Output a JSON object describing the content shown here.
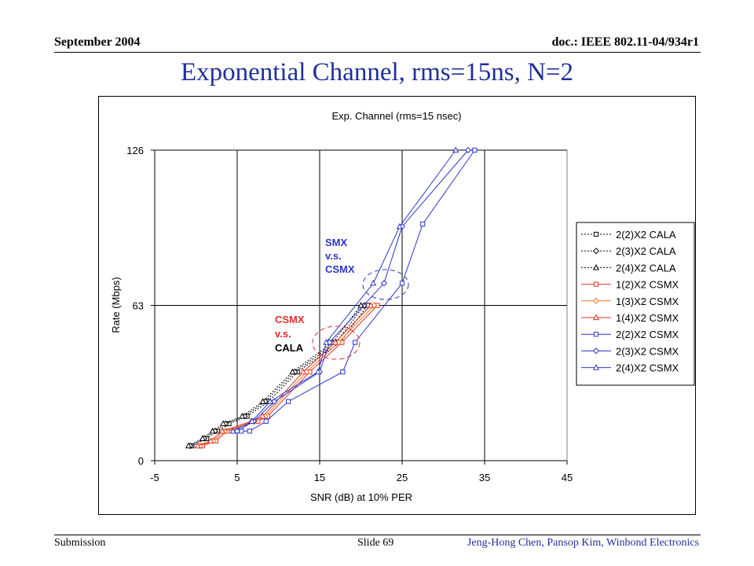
{
  "header": {
    "date": "September 2004",
    "doc": "doc.: IEEE 802.11-04/934r1"
  },
  "slide_title": "Exponential Channel, rms=15ns, N=2",
  "footer": {
    "left": "Submission",
    "center": "Slide 69",
    "right": "Jeng-Hong Chen, Pansop Kim, Winbond Electronics"
  },
  "colors": {
    "cala": "#000000",
    "csmx_1": "#e0302a",
    "csmx_1_3": "#f07a1e",
    "csmx_2": "#2b36c8",
    "annotation_red": "#e0302a",
    "annotation_blue": "#2b36c8"
  },
  "chart_data": {
    "type": "line",
    "title": "Exp. Channel (rms=15 nsec)",
    "xlabel": "SNR (dB) at 10% PER",
    "ylabel": "Rate (Mbps)",
    "xlim": [
      -5,
      45
    ],
    "ylim": [
      0,
      126
    ],
    "xticks": [
      "-5",
      "5",
      "15",
      "25",
      "35",
      "45"
    ],
    "yticks": [
      "0",
      "63",
      "126"
    ],
    "grid": "vertical and horizontal at major ticks",
    "legend_position": "right",
    "annotations": [
      {
        "lines": [
          "SMX",
          "v.s.",
          "CSMX"
        ],
        "color": "blue"
      },
      {
        "lines": [
          "CSMX",
          "v.s.",
          "CALA"
        ],
        "colors": [
          "red",
          "red",
          "black"
        ]
      }
    ],
    "series": [
      {
        "name": "2(2)X2 CALA",
        "style": "dotted",
        "marker": "square",
        "color": "#000000",
        "x": [
          -0.5,
          1.3,
          2.6,
          4.0,
          6.2,
          8.8,
          12.3,
          17.5,
          20.8
        ],
        "y": [
          6,
          9,
          12,
          15,
          18,
          24,
          36,
          48,
          63
        ]
      },
      {
        "name": "2(3)X2 CALA",
        "style": "dotted",
        "marker": "diamond",
        "color": "#000000",
        "x": [
          -0.7,
          1.0,
          2.3,
          3.6,
          5.9,
          8.4,
          12.0,
          17.0,
          20.4
        ],
        "y": [
          6,
          9,
          12,
          15,
          18,
          24,
          36,
          48,
          63
        ]
      },
      {
        "name": "2(4)X2 CALA",
        "style": "dotted",
        "marker": "triangle",
        "color": "#000000",
        "x": [
          -0.9,
          0.8,
          2.0,
          3.3,
          5.6,
          8.1,
          11.7,
          16.6,
          20.0
        ],
        "y": [
          6,
          9,
          12,
          15,
          18,
          24,
          36,
          48,
          63
        ]
      },
      {
        "name": "1(2)X2 CSMX",
        "style": "solid",
        "marker": "square",
        "color": "#e0302a",
        "x": [
          0.8,
          2.4,
          3.8,
          7.5,
          8.7,
          13.8,
          17.7,
          22.0
        ],
        "y": [
          6,
          8,
          12,
          16,
          18,
          36,
          48,
          63
        ]
      },
      {
        "name": "1(3)X2 CSMX",
        "style": "solid",
        "marker": "diamond",
        "color": "#f07a1e",
        "x": [
          0.5,
          2.1,
          3.5,
          7.1,
          8.4,
          13.4,
          17.3,
          21.6
        ],
        "y": [
          6,
          8,
          12,
          16,
          18,
          36,
          48,
          63
        ]
      },
      {
        "name": "1(4)X2 CSMX",
        "style": "solid",
        "marker": "triangle",
        "color": "#e0302a",
        "x": [
          0.2,
          1.8,
          3.2,
          6.7,
          8.1,
          13.0,
          16.9,
          21.2
        ],
        "y": [
          6,
          8,
          12,
          16,
          18,
          36,
          48,
          63
        ]
      },
      {
        "name": "2(2)X2 CSMX",
        "style": "solid",
        "marker": "square",
        "color": "#2b36c8",
        "x": [
          5.5,
          6.5,
          8.5,
          11.2,
          17.8,
          19.3,
          25.0,
          27.5,
          33.8
        ],
        "y": [
          12,
          12,
          16,
          24,
          36,
          48,
          72,
          96,
          126
        ]
      },
      {
        "name": "2(3)X2 CSMX",
        "style": "solid",
        "marker": "diamond",
        "color": "#2b36c8",
        "x": [
          5.0,
          7.0,
          9.5,
          15.0,
          16.2,
          22.8,
          25.0,
          33.0
        ],
        "y": [
          12,
          16,
          24,
          36,
          48,
          72,
          95,
          126
        ]
      },
      {
        "name": "2(4)X2 CSMX",
        "style": "solid",
        "marker": "triangle",
        "color": "#2b36c8",
        "x": [
          4.5,
          6.8,
          9.0,
          14.8,
          15.8,
          21.5,
          24.7,
          31.5
        ],
        "y": [
          12,
          16,
          24,
          36,
          48,
          72,
          95,
          126
        ]
      }
    ]
  }
}
